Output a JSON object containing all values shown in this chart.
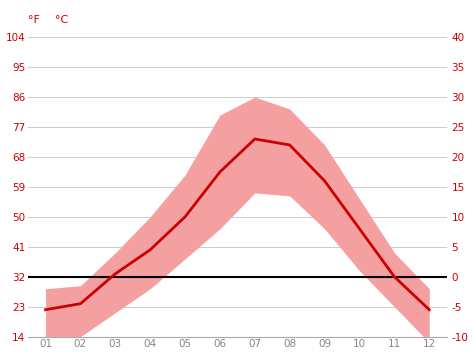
{
  "months": [
    1,
    2,
    3,
    4,
    5,
    6,
    7,
    8,
    9,
    10,
    11,
    12
  ],
  "month_labels": [
    "01",
    "02",
    "03",
    "04",
    "05",
    "06",
    "07",
    "08",
    "09",
    "10",
    "11",
    "12"
  ],
  "avg_temp_c": [
    -5.5,
    -4.5,
    0.5,
    4.5,
    10.0,
    17.5,
    23.0,
    22.0,
    16.0,
    8.0,
    0.0,
    -5.5
  ],
  "max_temp_c": [
    -2.0,
    -1.5,
    4.0,
    10.0,
    17.0,
    27.0,
    30.0,
    28.0,
    22.0,
    13.0,
    4.0,
    -2.0
  ],
  "min_temp_c": [
    -11.0,
    -10.0,
    -6.0,
    -2.0,
    3.0,
    8.0,
    14.0,
    13.5,
    8.0,
    1.0,
    -5.0,
    -11.0
  ],
  "ylim_c": [
    -10,
    40
  ],
  "yticks_c": [
    -10,
    -5,
    0,
    5,
    10,
    15,
    20,
    25,
    30,
    35,
    40
  ],
  "yticks_f": [
    14,
    23,
    32,
    41,
    50,
    59,
    68,
    77,
    86,
    95,
    104
  ],
  "line_color": "#cc0000",
  "band_color": "#f5a0a0",
  "freezing_color": "#000000",
  "grid_color": "#cccccc",
  "axis_label_color": "#cc0000",
  "background_color": "#ffffff",
  "tick_label_color": "#cc0000",
  "xlabel_color": "#888888",
  "label_f": "°F",
  "label_c": "°C"
}
